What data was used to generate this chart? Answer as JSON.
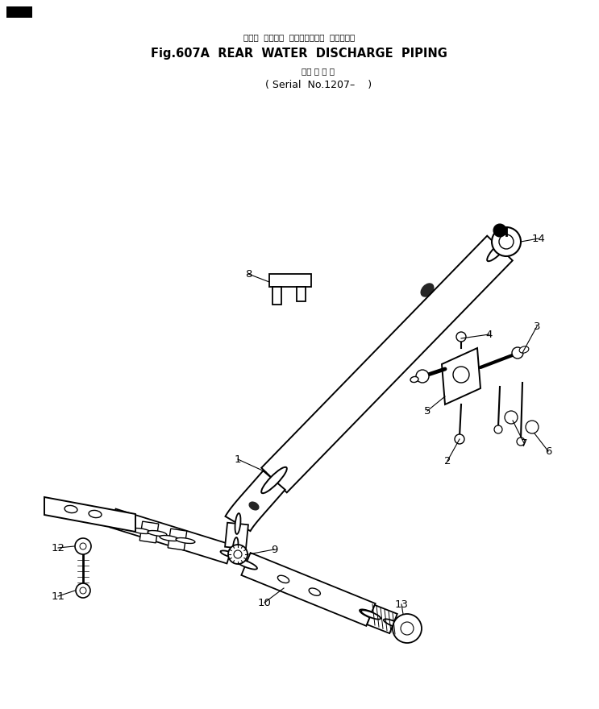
{
  "title_jp": "リヤー  ウォータ  ディスチャージ  パイピング",
  "title_en": "Fig.607A  REAR  WATER  DISCHARGE  PIPING",
  "sub_jp": "（適 用 号 機",
  "sub_en": "( Serial  No.1207–    )",
  "bg": "#ffffff",
  "lc": "#000000"
}
